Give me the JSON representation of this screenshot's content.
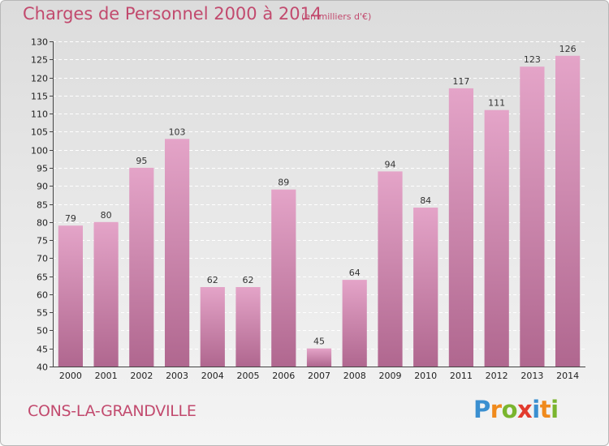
{
  "header": {
    "title": "Charges de Personnel 2000 à 2014",
    "subtitle": "(en milliers d'€)"
  },
  "footer": {
    "commune": "CONS-LA-GRANDVILLE",
    "logo": [
      "P",
      "r",
      "o",
      "x",
      "i",
      "t",
      "i"
    ]
  },
  "colors": {
    "bar_top": "#e4a4c8",
    "bar_bottom": "#b0678f",
    "title": "#c24a6e",
    "logo": [
      "#3a8fd0",
      "#f08a1c",
      "#7ab52e",
      "#e23b2e",
      "#3a8fd0",
      "#f08a1c",
      "#7ab52e"
    ]
  },
  "chart_data": {
    "type": "bar",
    "title": "Charges de Personnel 2000 à 2014",
    "subtitle": "(en milliers d'€)",
    "categories": [
      "2000",
      "2001",
      "2002",
      "2003",
      "2004",
      "2005",
      "2006",
      "2007",
      "2008",
      "2009",
      "2010",
      "2011",
      "2012",
      "2013",
      "2014"
    ],
    "values": [
      79,
      80,
      95,
      103,
      62,
      62,
      89,
      45,
      64,
      94,
      84,
      117,
      111,
      123,
      126
    ],
    "ylim": [
      40,
      130
    ],
    "yticks": [
      40,
      45,
      50,
      55,
      60,
      65,
      70,
      75,
      80,
      85,
      90,
      95,
      100,
      105,
      110,
      115,
      120,
      125,
      130
    ],
    "grid": true,
    "legend": "none"
  }
}
